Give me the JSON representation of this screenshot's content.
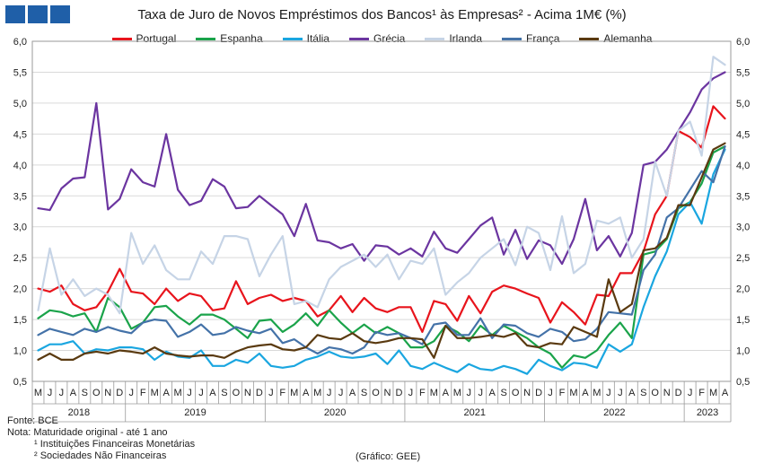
{
  "header": {
    "title": "Taxa de Juro de Novos Empréstimos dos Bancos¹ às Empresas² - Acima 1M€ (%)"
  },
  "footer": {
    "source": "Fonte: BCE",
    "note": "Nota: Maturidade original - até 1 ano",
    "footnote1": "¹ Instituições Financeiras Monetárias",
    "footnote2": "² Sociedades Não Financeiras",
    "credit": "(Gráfico: GEE)"
  },
  "chart_data": {
    "type": "line",
    "title": "Taxa de Juro de Novos Empréstimos dos Bancos¹ às Empresas² - Acima 1M€ (%)",
    "ylim": [
      0.5,
      6.0
    ],
    "yticks": [
      "0,5",
      "1,0",
      "1,5",
      "2,0",
      "2,5",
      "3,0",
      "3,5",
      "4,0",
      "4,5",
      "5,0",
      "5,5",
      "6,0"
    ],
    "x_month_labels": [
      "M",
      "J",
      "J",
      "A",
      "S",
      "O",
      "N",
      "D",
      "J",
      "F",
      "M",
      "A",
      "M",
      "J",
      "J",
      "A",
      "S",
      "O",
      "N",
      "D",
      "J",
      "F",
      "M",
      "A",
      "M",
      "J",
      "J",
      "A",
      "S",
      "O",
      "N",
      "D",
      "J",
      "F",
      "M",
      "A",
      "M",
      "J",
      "J",
      "A",
      "S",
      "O",
      "N",
      "D",
      "J",
      "F",
      "M",
      "A",
      "M",
      "J",
      "J",
      "A",
      "S",
      "O",
      "N",
      "D",
      "J",
      "F",
      "M",
      "A"
    ],
    "x_year_labels": [
      "2018",
      "2019",
      "2020",
      "2021",
      "2022",
      "2023"
    ],
    "grid": "horizontal",
    "legend_position": "top",
    "series": [
      {
        "name": "Portugal",
        "color": "#e8141c",
        "values": [
          2.0,
          1.95,
          2.05,
          1.75,
          1.65,
          1.7,
          1.95,
          2.32,
          1.95,
          1.92,
          1.75,
          2.0,
          1.8,
          1.92,
          1.88,
          1.65,
          1.68,
          2.12,
          1.75,
          1.85,
          1.9,
          1.8,
          1.85,
          1.8,
          1.55,
          1.65,
          1.88,
          1.62,
          1.85,
          1.68,
          1.62,
          1.7,
          1.7,
          1.3,
          1.8,
          1.75,
          1.48,
          1.88,
          1.6,
          1.95,
          2.05,
          2.0,
          1.92,
          1.85,
          1.45,
          1.78,
          1.62,
          1.42,
          1.9,
          1.88,
          2.25,
          2.25,
          2.6,
          3.2,
          3.5,
          4.55,
          4.45,
          4.28,
          4.95,
          4.75
        ]
      },
      {
        "name": "Espanha",
        "color": "#1aa34a",
        "values": [
          1.52,
          1.65,
          1.62,
          1.55,
          1.6,
          1.3,
          1.85,
          1.7,
          1.35,
          1.45,
          1.7,
          1.72,
          1.55,
          1.42,
          1.58,
          1.58,
          1.5,
          1.35,
          1.2,
          1.48,
          1.5,
          1.3,
          1.42,
          1.6,
          1.4,
          1.65,
          1.45,
          1.28,
          1.42,
          1.28,
          1.38,
          1.28,
          1.05,
          1.05,
          1.15,
          1.4,
          1.3,
          1.15,
          1.4,
          1.25,
          1.4,
          1.3,
          1.2,
          1.05,
          0.95,
          0.72,
          0.92,
          0.88,
          1.0,
          1.25,
          1.45,
          1.2,
          2.55,
          2.6,
          2.8,
          3.3,
          3.4,
          3.7,
          4.2,
          4.3
        ]
      },
      {
        "name": "Itália",
        "color": "#1aa6e0",
        "values": [
          1.0,
          1.1,
          1.1,
          1.15,
          0.95,
          1.02,
          1.0,
          1.05,
          1.05,
          1.02,
          0.85,
          0.98,
          0.9,
          0.88,
          1.0,
          0.75,
          0.75,
          0.85,
          0.8,
          0.95,
          0.75,
          0.72,
          0.75,
          0.85,
          0.9,
          0.98,
          0.9,
          0.88,
          0.9,
          0.95,
          0.78,
          1.0,
          0.75,
          0.7,
          0.8,
          0.72,
          0.65,
          0.78,
          0.7,
          0.68,
          0.75,
          0.7,
          0.62,
          0.85,
          0.75,
          0.68,
          0.8,
          0.78,
          0.72,
          1.1,
          0.98,
          1.1,
          1.7,
          2.2,
          2.6,
          3.2,
          3.4,
          3.05,
          3.85,
          4.25
        ]
      },
      {
        "name": "Grécia",
        "color": "#6b35a0",
        "values": [
          3.3,
          3.27,
          3.62,
          3.78,
          3.8,
          5.0,
          3.28,
          3.45,
          3.93,
          3.72,
          3.65,
          4.5,
          3.6,
          3.35,
          3.42,
          3.77,
          3.65,
          3.3,
          3.32,
          3.5,
          3.35,
          3.2,
          2.85,
          3.37,
          2.78,
          2.75,
          2.65,
          2.72,
          2.45,
          2.7,
          2.68,
          2.55,
          2.65,
          2.52,
          2.92,
          2.65,
          2.58,
          2.8,
          3.02,
          3.15,
          2.55,
          2.95,
          2.48,
          2.78,
          2.7,
          2.4,
          2.8,
          3.45,
          2.62,
          2.85,
          2.52,
          2.9,
          4.0,
          4.05,
          4.25,
          4.55,
          4.85,
          5.22,
          5.4,
          5.5
        ]
      },
      {
        "name": "Irlanda",
        "color": "#c6d4e6",
        "values": [
          1.65,
          2.65,
          1.9,
          2.15,
          1.88,
          2.0,
          1.9,
          1.6,
          2.9,
          2.4,
          2.7,
          2.3,
          2.15,
          2.15,
          2.6,
          2.4,
          2.85,
          2.85,
          2.8,
          2.2,
          2.55,
          2.85,
          1.75,
          1.8,
          1.7,
          2.15,
          2.35,
          2.45,
          2.55,
          2.35,
          2.55,
          2.15,
          2.45,
          2.4,
          2.65,
          1.9,
          2.1,
          2.25,
          2.5,
          2.65,
          2.8,
          2.38,
          3.0,
          2.9,
          2.3,
          3.17,
          2.25,
          2.4,
          3.1,
          3.05,
          3.15,
          2.5,
          2.8,
          4.05,
          3.5,
          4.55,
          4.7,
          4.15,
          5.75,
          5.62
        ]
      },
      {
        "name": "França",
        "color": "#4472a8",
        "values": [
          1.25,
          1.35,
          1.3,
          1.25,
          1.35,
          1.3,
          1.38,
          1.32,
          1.28,
          1.45,
          1.5,
          1.48,
          1.22,
          1.3,
          1.42,
          1.25,
          1.28,
          1.38,
          1.32,
          1.28,
          1.35,
          1.12,
          1.18,
          1.05,
          0.95,
          1.05,
          1.02,
          0.95,
          1.05,
          1.3,
          1.25,
          1.28,
          1.2,
          1.1,
          1.42,
          1.45,
          1.25,
          1.25,
          1.52,
          1.2,
          1.42,
          1.4,
          1.28,
          1.22,
          1.35,
          1.3,
          1.15,
          1.18,
          1.35,
          1.62,
          1.6,
          1.58,
          2.3,
          2.55,
          3.15,
          3.3,
          3.6,
          3.9,
          3.72,
          4.3
        ]
      },
      {
        "name": "Alemanha",
        "color": "#5a3a10",
        "values": [
          0.85,
          0.95,
          0.85,
          0.85,
          0.95,
          0.98,
          0.95,
          1.0,
          0.98,
          0.95,
          1.05,
          0.95,
          0.92,
          0.9,
          0.92,
          0.92,
          0.88,
          0.98,
          1.05,
          1.08,
          1.1,
          1.02,
          1.0,
          1.05,
          1.25,
          1.2,
          1.18,
          1.28,
          1.15,
          1.12,
          1.15,
          1.2,
          1.2,
          1.18,
          0.88,
          1.4,
          1.2,
          1.2,
          1.22,
          1.25,
          1.22,
          1.28,
          1.08,
          1.05,
          1.12,
          1.1,
          1.38,
          1.3,
          1.22,
          2.15,
          1.62,
          1.75,
          2.62,
          2.65,
          2.82,
          3.35,
          3.35,
          3.8,
          4.25,
          4.35
        ]
      }
    ]
  }
}
